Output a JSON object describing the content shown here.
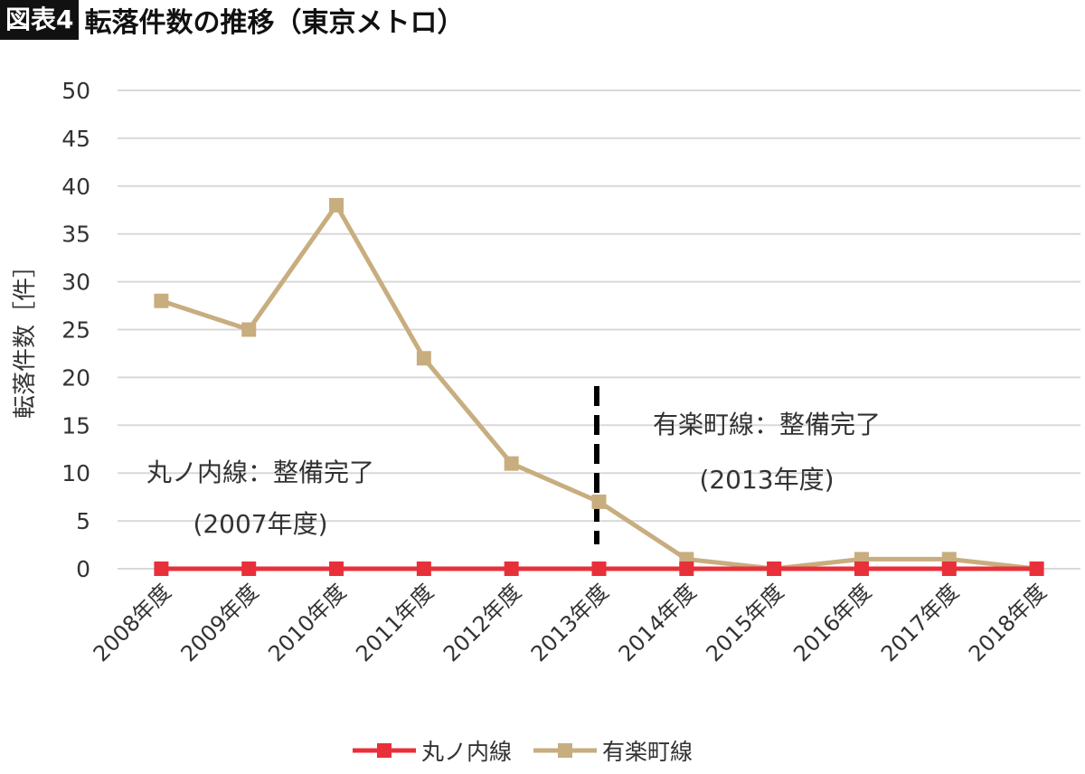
{
  "header": {
    "badge": "図表4",
    "title": "転落件数の推移（東京メトロ）"
  },
  "chart_data": {
    "type": "line",
    "title": "転落件数の推移（東京メトロ）",
    "ylabel": "転落件数［件］",
    "xlabel": "",
    "ylim": [
      0,
      50
    ],
    "yticks": [
      0,
      5,
      10,
      15,
      20,
      25,
      30,
      35,
      40,
      45,
      50
    ],
    "grid": true,
    "legend": "bottom",
    "categories": [
      "2008年度",
      "2009年度",
      "2010年度",
      "2011年度",
      "2012年度",
      "2013年度",
      "2014年度",
      "2015年度",
      "2016年度",
      "2017年度",
      "2018年度"
    ],
    "series": [
      {
        "name": "丸ノ内線",
        "color": "#e8303a",
        "values": [
          0,
          0,
          0,
          0,
          0,
          0,
          0,
          0,
          0,
          0,
          0
        ]
      },
      {
        "name": "有楽町線",
        "color": "#c8ad7f",
        "values": [
          28,
          25,
          38,
          22,
          11,
          7,
          1,
          0,
          1,
          1,
          0
        ]
      }
    ],
    "annotations": [
      {
        "line1": "丸ノ内線：整備完了",
        "line2": "(2007年度)"
      },
      {
        "line1": "有楽町線：整備完了",
        "line2": "(2013年度)",
        "marker": "dashed vertical line at 2013年度"
      }
    ]
  }
}
